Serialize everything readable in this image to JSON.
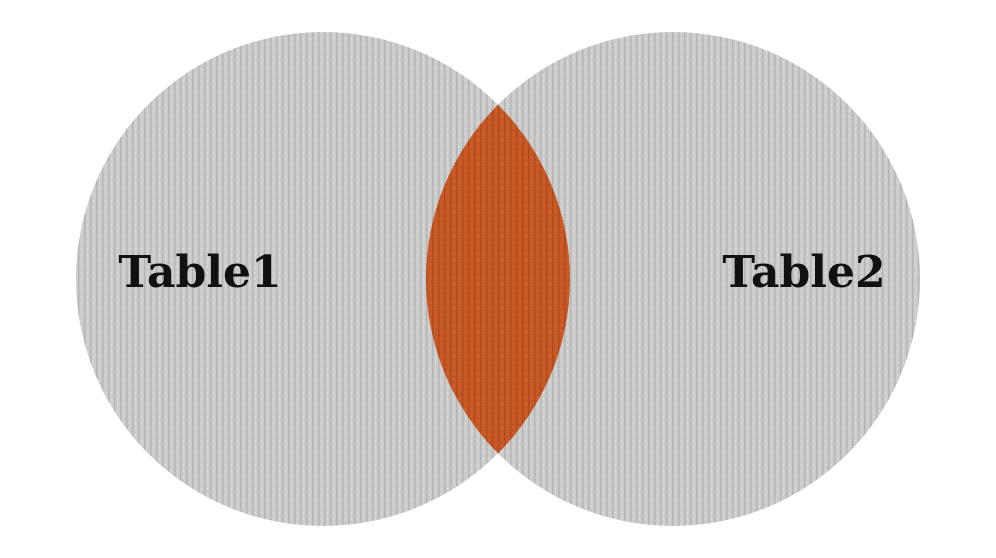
{
  "diagram": {
    "type": "venn",
    "sets": [
      {
        "label": "Table1"
      },
      {
        "label": "Table2"
      }
    ],
    "intersection_highlighted": true,
    "colors": {
      "set_fill": "#cccccc",
      "set_texture": "#b4b4b4",
      "intersection_fill": "#cb5a26",
      "intersection_texture": "#a84a1e",
      "label": "#111111"
    }
  }
}
